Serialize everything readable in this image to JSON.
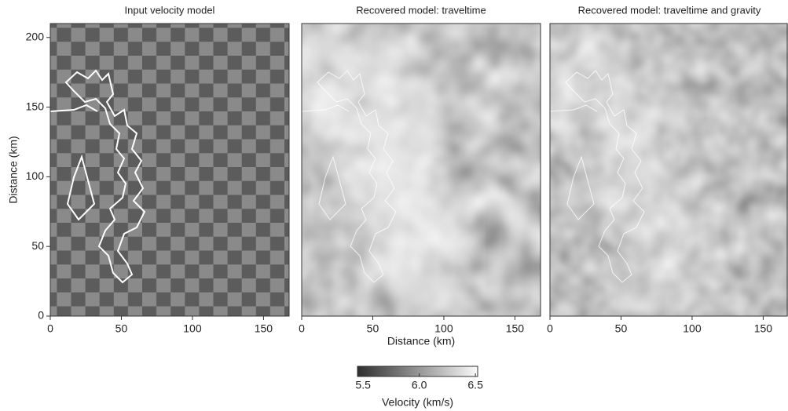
{
  "chart_data": [
    {
      "type": "checkerboard",
      "title": "Input velocity model",
      "xlim": [
        0,
        168
      ],
      "ylim": [
        0,
        210
      ],
      "xticks": [
        0,
        50,
        100,
        150
      ],
      "yticks": [
        0,
        50,
        100,
        150,
        200
      ],
      "ylabel": "Distance (km)"
    },
    {
      "type": "recovered",
      "title": "Recovered model: traveltime",
      "xlim": [
        0,
        168
      ],
      "ylim": [
        0,
        210
      ],
      "xticks": [
        0,
        50,
        100,
        150
      ],
      "xlabel": "Distance (km)"
    },
    {
      "type": "recovered",
      "title": "Recovered model: traveltime and gravity",
      "xlim": [
        0,
        168
      ],
      "ylim": [
        0,
        210
      ],
      "xticks": [
        0,
        50,
        100,
        150
      ]
    }
  ],
  "colorbar": {
    "label": "Velocity (km/s)",
    "lim": [
      5.45,
      6.52
    ],
    "ticks": [
      5.5,
      {
        "value": 6,
        "label": "6.0"
      },
      6.5
    ]
  }
}
